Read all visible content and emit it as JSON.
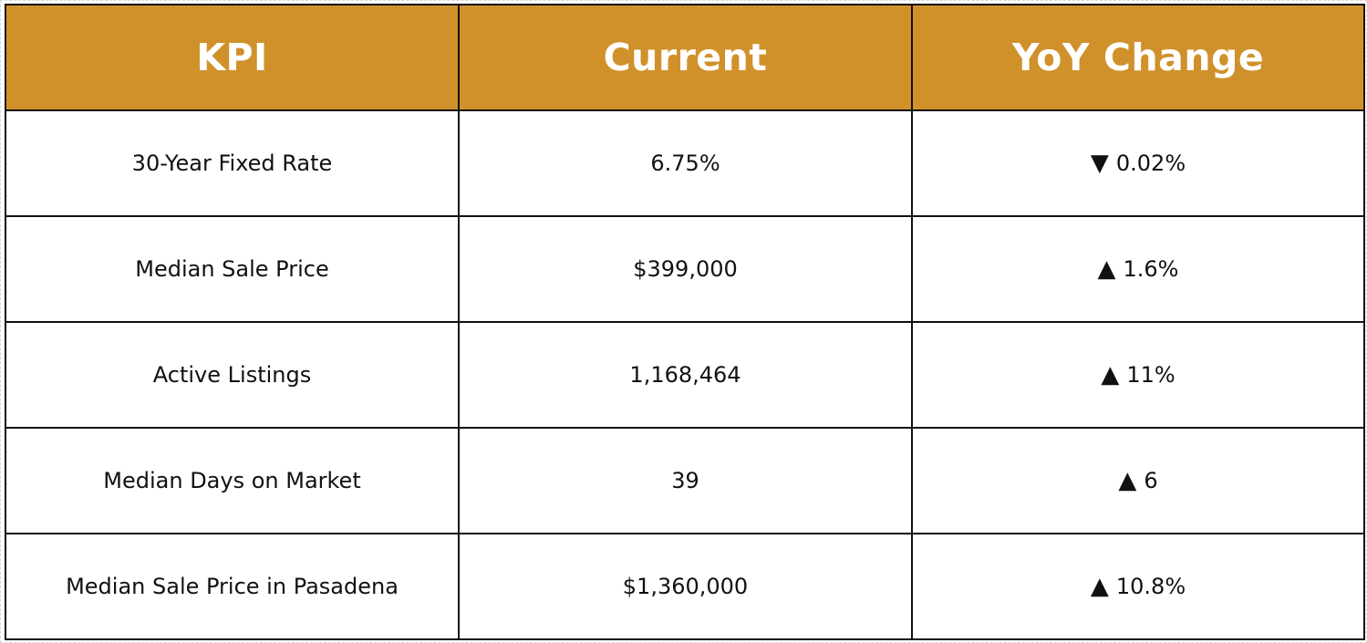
{
  "table": {
    "headers": [
      "KPI",
      "Current",
      "YoY Change"
    ],
    "rows": [
      {
        "kpi": "30-Year Fixed Rate",
        "current": "6.75%",
        "direction": "down",
        "arrow": "▼",
        "change": "0.02%"
      },
      {
        "kpi": "Median Sale Price",
        "current": "$399,000",
        "direction": "up",
        "arrow": "▲",
        "change": "1.6%"
      },
      {
        "kpi": "Active Listings",
        "current": "1,168,464",
        "direction": "up",
        "arrow": "▲",
        "change": "11%"
      },
      {
        "kpi": "Median Days on Market",
        "current": "39",
        "direction": "up",
        "arrow": "▲",
        "change": "6"
      },
      {
        "kpi": "Median Sale Price in Pasadena",
        "current": "$1,360,000",
        "direction": "up",
        "arrow": "▲",
        "change": "10.8%"
      }
    ]
  },
  "colors": {
    "header_bg": "#d0912b",
    "header_text": "#ffffff",
    "border": "#111111",
    "body_text": "#111111"
  },
  "icons": {
    "down": "down-triangle-icon",
    "up": "up-triangle-icon"
  }
}
